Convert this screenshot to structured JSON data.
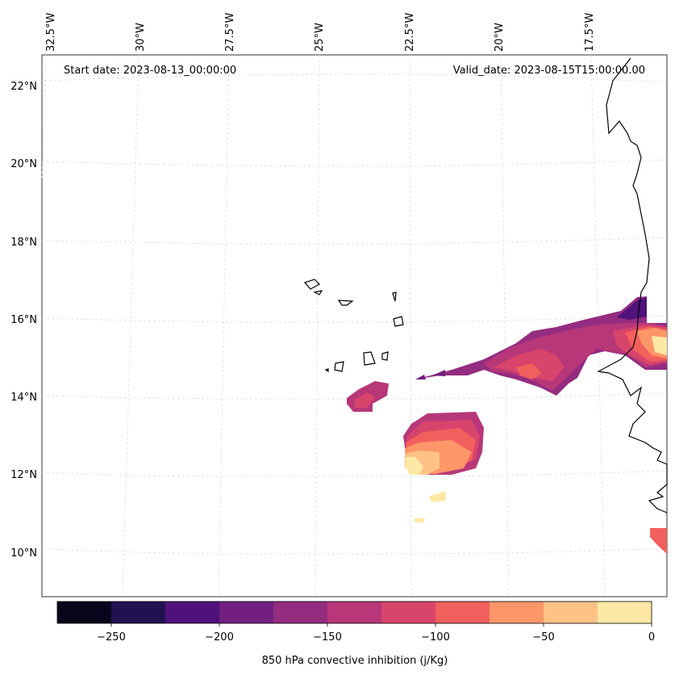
{
  "map": {
    "start_date": "Start date: 2023-08-13_00:00:00",
    "valid_date": "Valid_date: 2023-08-15T15:00:00.00",
    "lon_labels": [
      "32.5°W",
      "30°W",
      "27.5°W",
      "25°W",
      "22.5°W",
      "20°W",
      "17.5°W"
    ],
    "lat_labels": [
      "22°N",
      "20°N",
      "18°N",
      "16°N",
      "14°N",
      "12°N",
      "10°N"
    ]
  },
  "colorbar": {
    "label": "850 hPa convective inhibition (j/Kg)",
    "tick_labels": [
      "−250",
      "−200",
      "−150",
      "−100",
      "−50",
      "0"
    ],
    "colors": [
      "#07061c",
      "#221150",
      "#4f127b",
      "#721f81",
      "#942c80",
      "#b73779",
      "#d8456c",
      "#f1605d",
      "#fd9668",
      "#fec287",
      "#fde9a5"
    ]
  },
  "colors": {
    "land_outline": "#000000",
    "grid": "#cfcfcf"
  }
}
